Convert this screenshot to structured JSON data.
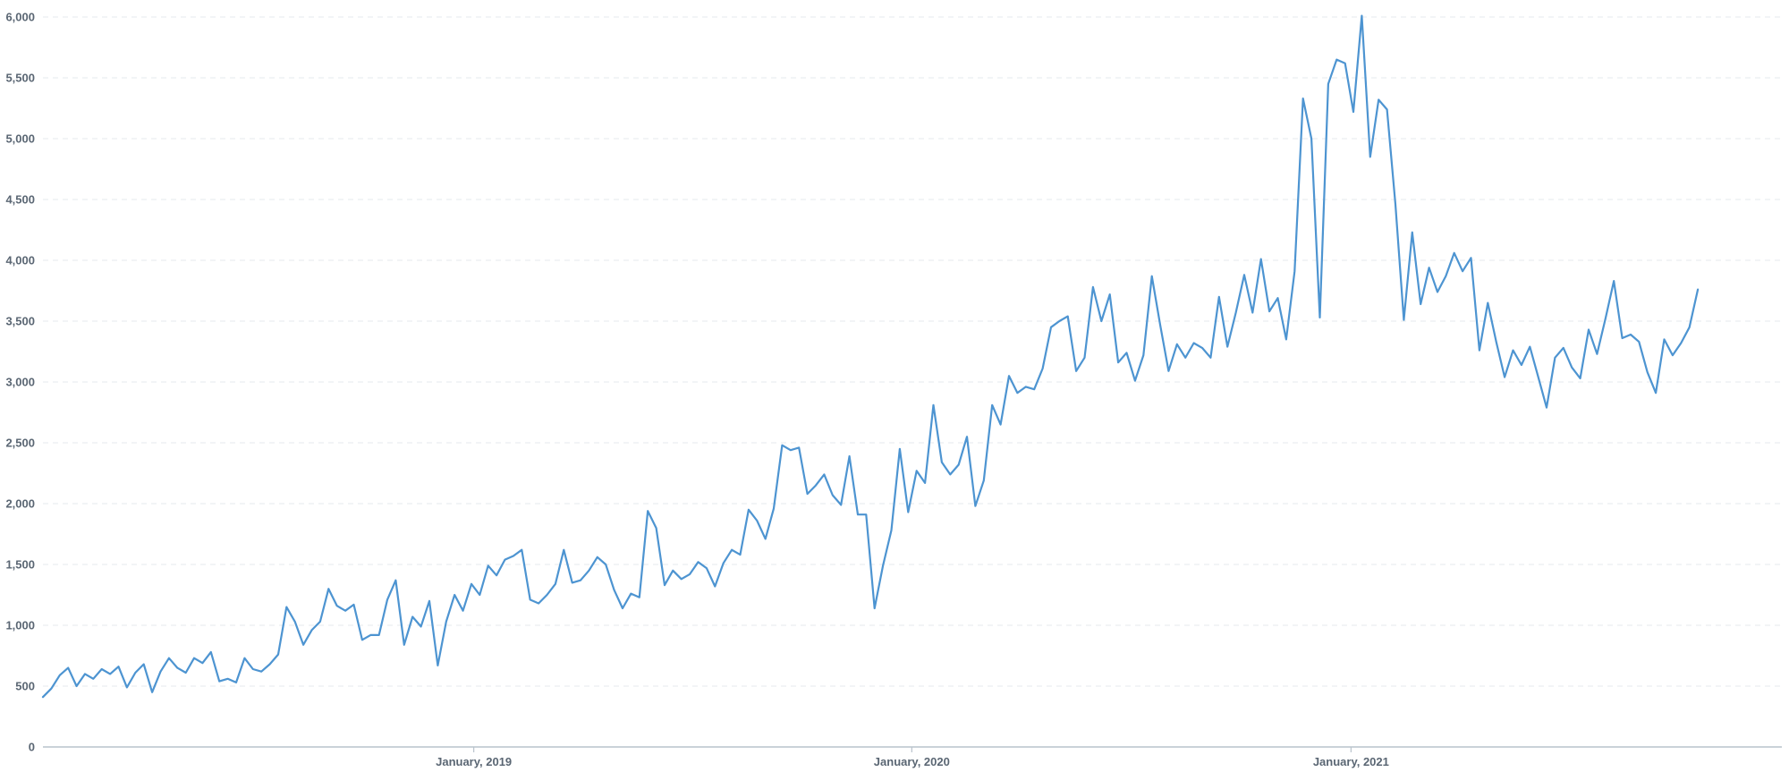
{
  "chart_data": {
    "type": "line",
    "title": "",
    "xlabel": "",
    "ylabel": "",
    "x_start": "2018-01-07",
    "x_step_days": 7,
    "x_range": [
      "2018-01-07",
      "2021-12-26"
    ],
    "ylim": [
      0,
      6000
    ],
    "y_ticks": [
      0,
      500,
      1000,
      1500,
      2000,
      2500,
      3000,
      3500,
      4000,
      4500,
      5000,
      5500,
      6000
    ],
    "y_tick_labels": [
      "0",
      "500",
      "1,000",
      "1,500",
      "2,000",
      "2,500",
      "3,000",
      "3,500",
      "4,000",
      "4,500",
      "5,000",
      "5,500",
      "6,000"
    ],
    "x_ticks": [
      {
        "date": "2019-01-01",
        "label": "January, 2019"
      },
      {
        "date": "2020-01-01",
        "label": "January, 2020"
      },
      {
        "date": "2021-01-01",
        "label": "January, 2021"
      }
    ],
    "grid": true,
    "legend": "none",
    "series": [
      {
        "color": "#4d94d1",
        "values": [
          410,
          480,
          590,
          650,
          500,
          600,
          560,
          640,
          600,
          660,
          490,
          610,
          680,
          450,
          620,
          730,
          650,
          610,
          730,
          690,
          780,
          540,
          560,
          530,
          730,
          640,
          620,
          680,
          760,
          1150,
          1030,
          840,
          960,
          1030,
          1300,
          1160,
          1120,
          1170,
          880,
          920,
          920,
          1210,
          1370,
          840,
          1070,
          990,
          1200,
          670,
          1030,
          1250,
          1120,
          1340,
          1250,
          1490,
          1410,
          1540,
          1570,
          1620,
          1210,
          1180,
          1250,
          1340,
          1620,
          1350,
          1370,
          1450,
          1560,
          1500,
          1290,
          1140,
          1260,
          1230,
          1940,
          1800,
          1330,
          1450,
          1380,
          1420,
          1520,
          1470,
          1320,
          1510,
          1620,
          1580,
          1950,
          1860,
          1710,
          1960,
          2480,
          2440,
          2460,
          2080,
          2150,
          2240,
          2070,
          1990,
          2390,
          1910,
          1910,
          1140,
          1490,
          1780,
          2450,
          1930,
          2270,
          2170,
          2810,
          2340,
          2240,
          2320,
          2550,
          1980,
          2190,
          2810,
          2650,
          3050,
          2910,
          2960,
          2940,
          3110,
          3450,
          3500,
          3540,
          3090,
          3200,
          3780,
          3500,
          3720,
          3160,
          3240,
          3010,
          3220,
          3870,
          3470,
          3090,
          3310,
          3200,
          3320,
          3280,
          3200,
          3700,
          3290,
          3570,
          3880,
          3570,
          4010,
          3580,
          3690,
          3350,
          3910,
          5330,
          5000,
          3530,
          5450,
          5650,
          5620,
          5220,
          6010,
          4850,
          5320,
          5240,
          4460,
          3510,
          4230,
          3640,
          3940,
          3740,
          3870,
          4060,
          3910,
          4020,
          3260,
          3650,
          3330,
          3040,
          3260,
          3140,
          3290,
          3040,
          2790,
          3200,
          3280,
          3120,
          3030,
          3430,
          3230,
          3520,
          3830,
          3360,
          3390,
          3330,
          3080,
          2910,
          3350,
          3220,
          3320,
          3450,
          3760
        ]
      }
    ]
  }
}
